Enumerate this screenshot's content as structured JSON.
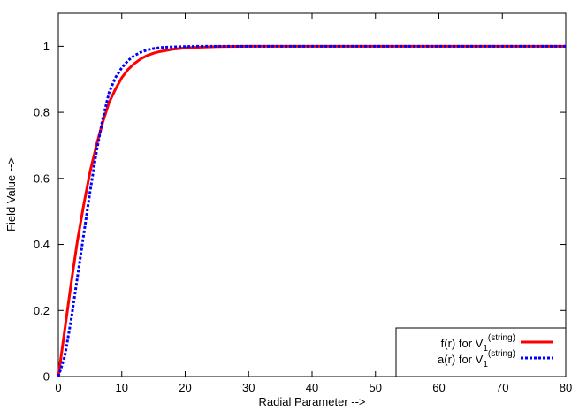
{
  "chart_data": {
    "type": "line",
    "xlabel": "Radial Parameter -->",
    "ylabel": "Field Value -->",
    "xlim": [
      0,
      80
    ],
    "ylim": [
      0,
      1.1
    ],
    "xticks": [
      "0",
      "10",
      "20",
      "30",
      "40",
      "50",
      "60",
      "70",
      "80"
    ],
    "yticks": [
      "0",
      "0.2",
      "0.4",
      "0.6",
      "0.8",
      "1"
    ],
    "grid": false,
    "legend_position": "bottom-right",
    "series": [
      {
        "name_main": "f(r) for V",
        "name_sub": "1",
        "name_sup": "(string)",
        "color": "#ff0000",
        "style": "solid",
        "x": [
          0,
          1,
          2,
          3,
          4,
          5,
          6,
          7,
          8,
          9,
          10,
          11,
          12,
          13,
          14,
          15,
          16,
          18,
          20,
          22,
          25,
          30,
          35,
          40,
          50,
          60,
          70,
          80
        ],
        "y": [
          0,
          0.14,
          0.28,
          0.41,
          0.52,
          0.62,
          0.7,
          0.77,
          0.83,
          0.87,
          0.905,
          0.93,
          0.948,
          0.962,
          0.972,
          0.979,
          0.984,
          0.991,
          0.995,
          0.997,
          0.999,
          1.0,
          1.0,
          1.0,
          1.0,
          1.0,
          1.0,
          1.0
        ]
      },
      {
        "name_main": "a(r) for V",
        "name_sub": "1",
        "name_sup": "(string)",
        "color": "#0000ff",
        "style": "dashed",
        "x": [
          0,
          1,
          2,
          3,
          4,
          5,
          6,
          7,
          8,
          9,
          10,
          11,
          12,
          13,
          14,
          15,
          16,
          18,
          20,
          22,
          25,
          30,
          35,
          40,
          50,
          60,
          70,
          80
        ],
        "y": [
          0,
          0.06,
          0.17,
          0.3,
          0.43,
          0.56,
          0.68,
          0.78,
          0.86,
          0.905,
          0.935,
          0.957,
          0.972,
          0.982,
          0.989,
          0.993,
          0.996,
          0.998,
          0.999,
          1.0,
          1.0,
          1.0,
          1.0,
          1.0,
          1.0,
          1.0,
          1.0,
          1.0
        ]
      }
    ]
  }
}
